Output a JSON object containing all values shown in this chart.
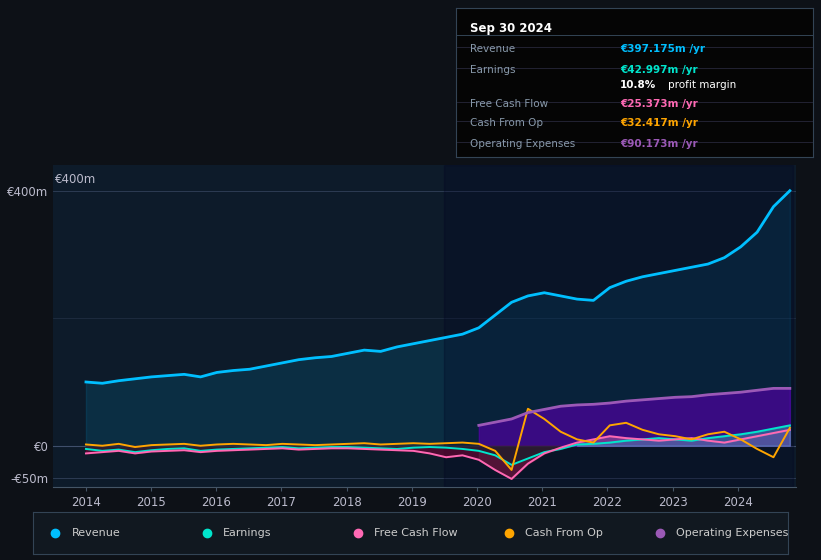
{
  "bg_color": "#0d1117",
  "plot_bg_color": "#0d1b2a",
  "infobox": {
    "title": "Sep 30 2024",
    "rows": [
      {
        "label": "Revenue",
        "value": "€397.175m /yr",
        "value_color": "#00bfff"
      },
      {
        "label": "Earnings",
        "value": "€42.997m /yr",
        "value_color": "#00e5cc"
      },
      {
        "label": "",
        "value": "10.8% profit margin",
        "value_color": "#ffffff"
      },
      {
        "label": "Free Cash Flow",
        "value": "€25.373m /yr",
        "value_color": "#ff69b4"
      },
      {
        "label": "Cash From Op",
        "value": "€32.417m /yr",
        "value_color": "#ffa500"
      },
      {
        "label": "Operating Expenses",
        "value": "€90.173m /yr",
        "value_color": "#9b59b6"
      }
    ]
  },
  "ylim": [
    -65,
    440
  ],
  "xtick_years": [
    2014,
    2015,
    2016,
    2017,
    2018,
    2019,
    2020,
    2021,
    2022,
    2023,
    2024
  ],
  "colors": {
    "revenue": "#00bfff",
    "earnings": "#00e5cc",
    "fcf": "#ff69b4",
    "cashfromop": "#ffa500",
    "opex": "#9b59b6"
  },
  "legend": [
    {
      "label": "Revenue",
      "color": "#00bfff"
    },
    {
      "label": "Earnings",
      "color": "#00e5cc"
    },
    {
      "label": "Free Cash Flow",
      "color": "#ff69b4"
    },
    {
      "label": "Cash From Op",
      "color": "#ffa500"
    },
    {
      "label": "Operating Expenses",
      "color": "#9b59b6"
    }
  ]
}
